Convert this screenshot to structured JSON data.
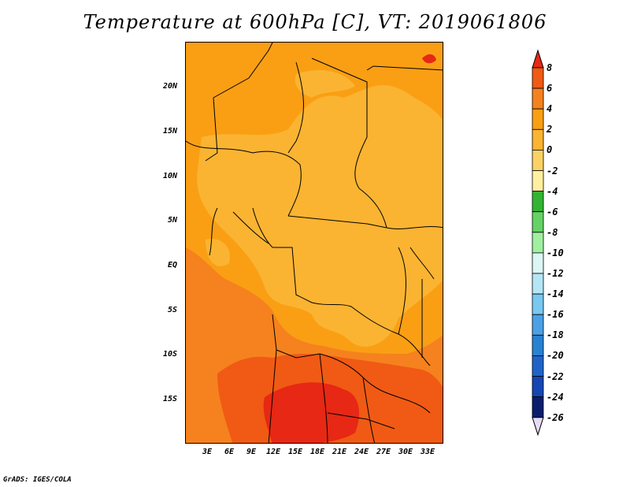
{
  "title": "Temperature at 600hPa [C], VT: 2019061806",
  "credit": "GrADS: IGES/COLA",
  "lat_ticks": [
    "20N",
    "15N",
    "10N",
    "5N",
    "EQ",
    "5S",
    "10S",
    "15S"
  ],
  "lon_ticks": [
    "3E",
    "6E",
    "9E",
    "12E",
    "15E",
    "18E",
    "21E",
    "24E",
    "27E",
    "30E",
    "33E"
  ],
  "colorbar": {
    "labels": [
      "8",
      "6",
      "4",
      "2",
      "0",
      "-2",
      "-4",
      "-6",
      "-8",
      "-10",
      "-12",
      "-14",
      "-16",
      "-18",
      "-20",
      "-22",
      "-24",
      "-26"
    ],
    "colors": [
      "#e62814",
      "#f05a14",
      "#f5821e",
      "#fa9f14",
      "#fab432",
      "#fad264",
      "#fff0a0",
      "#32b432",
      "#64d264",
      "#a0f0a0",
      "#dcf5f5",
      "#b4e6f5",
      "#78c8f0",
      "#4ba0e6",
      "#2882d2",
      "#1e64c8",
      "#1446b4",
      "#0a1e6e",
      "#e6dcf5"
    ]
  },
  "field_colors": {
    "c0": "#fab432",
    "c2": "#fa9f14",
    "c4": "#f5821e",
    "c6": "#f05a14",
    "c8": "#e62814"
  }
}
